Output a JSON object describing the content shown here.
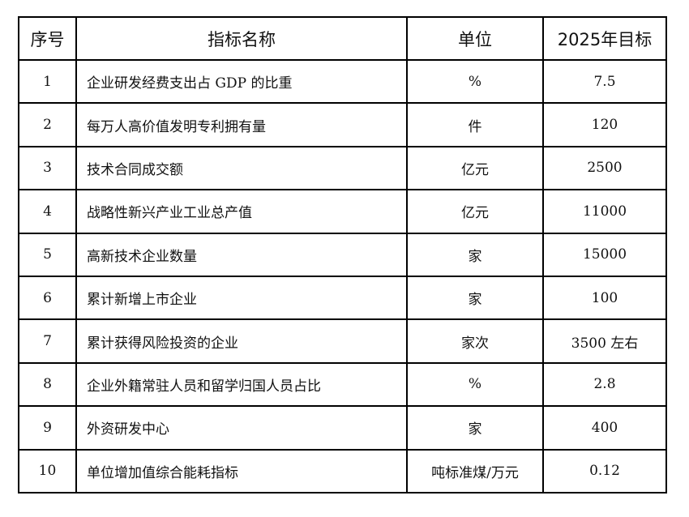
{
  "table": {
    "headers": [
      "序号",
      "指标名称",
      "单位",
      "2025年目标"
    ],
    "rows": [
      {
        "no": "1",
        "name": "企业研发经费支出占 GDP 的比重",
        "unit": "%",
        "target": "7.5"
      },
      {
        "no": "2",
        "name": "每万人高价值发明专利拥有量",
        "unit": "件",
        "target": "120"
      },
      {
        "no": "3",
        "name": "技术合同成交额",
        "unit": "亿元",
        "target": "2500"
      },
      {
        "no": "4",
        "name": "战略性新兴产业工业总产值",
        "unit": "亿元",
        "target": "11000"
      },
      {
        "no": "5",
        "name": "高新技术企业数量",
        "unit": "家",
        "target": "15000"
      },
      {
        "no": "6",
        "name": "累计新增上市企业",
        "unit": "家",
        "target": "100"
      },
      {
        "no": "7",
        "name": "累计获得风险投资的企业",
        "unit": "家次",
        "target": "3500 左右"
      },
      {
        "no": "8",
        "name": "企业外籍常驻人员和留学归国人员占比",
        "unit": "%",
        "target": "2.8"
      },
      {
        "no": "9",
        "name": "外资研发中心",
        "unit": "家",
        "target": "400"
      },
      {
        "no": "10",
        "name": "单位增加值综合能耗指标",
        "unit": "吨标准煤/万元",
        "target": "0.12"
      }
    ]
  }
}
